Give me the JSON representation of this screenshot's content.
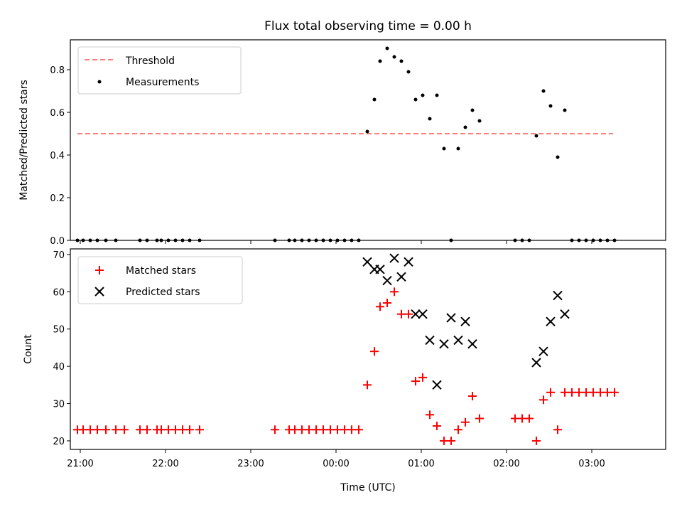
{
  "title": "Flux total observing time = 0.00 h",
  "colors": {
    "threshold": "#ff7f7f",
    "measurements": "#000000",
    "matched": "#ff0000",
    "predicted": "#000000"
  },
  "chart_data": [
    {
      "type": "scatter",
      "title": "Flux total observing time = 0.00 h",
      "ylabel": "Matched/Predicted stars",
      "xlabel": "",
      "xlim": [
        "20:53",
        "03:52"
      ],
      "ylim": [
        0,
        0.94
      ],
      "yticks": [
        "0.0",
        "0.2",
        "0.4",
        "0.6",
        "0.8"
      ],
      "ytick_values": [
        0,
        0.2,
        0.4,
        0.6,
        0.8
      ],
      "legend_loc": "upper left",
      "threshold": {
        "name": "Threshold",
        "y": 0.5,
        "x_start": "20:58",
        "x_end": "03:15"
      },
      "series": [
        {
          "name": "Measurements",
          "x": [
            "20:58",
            "21:02",
            "21:07",
            "21:12",
            "21:18",
            "21:25",
            "21:42",
            "21:47",
            "21:54",
            "21:57",
            "22:02",
            "22:07",
            "22:12",
            "22:17",
            "22:24",
            "23:17",
            "23:27",
            "23:31",
            "23:36",
            "23:41",
            "23:46",
            "23:51",
            "23:56",
            "00:01",
            "00:06",
            "00:11",
            "00:16",
            "00:22",
            "00:27",
            "00:31",
            "00:36",
            "00:41",
            "00:46",
            "00:51",
            "00:56",
            "01:01",
            "01:06",
            "01:11",
            "01:16",
            "01:21",
            "01:26",
            "01:31",
            "01:36",
            "01:41",
            "02:06",
            "02:11",
            "02:16",
            "02:21",
            "02:26",
            "02:31",
            "02:36",
            "02:41",
            "02:46",
            "02:51",
            "02:56",
            "03:01",
            "03:06",
            "03:11",
            "03:16"
          ],
          "y": [
            0,
            0,
            0,
            0,
            0,
            0,
            0,
            0,
            0,
            0,
            0,
            0,
            0,
            0,
            0,
            0,
            0,
            0,
            0,
            0,
            0,
            0,
            0,
            0,
            0,
            0,
            0,
            0.51,
            0.66,
            0.84,
            0.9,
            0.86,
            0.84,
            0.79,
            0.66,
            0.68,
            0.57,
            0.68,
            0.43,
            0,
            0.43,
            0.53,
            0.61,
            0.56,
            0,
            0,
            0,
            0.49,
            0.7,
            0.63,
            0.39,
            0.61,
            0,
            0,
            0,
            0,
            0,
            0,
            0
          ]
        }
      ]
    },
    {
      "type": "scatter",
      "title": "",
      "ylabel": "Count",
      "xlabel": "Time (UTC)",
      "xlim": [
        "20:53",
        "03:52"
      ],
      "ylim": [
        17.7,
        71.5
      ],
      "yticks": [
        "20",
        "30",
        "40",
        "50",
        "60",
        "70"
      ],
      "ytick_values": [
        20,
        30,
        40,
        50,
        60,
        70
      ],
      "xticks": [
        "21:00",
        "22:00",
        "23:00",
        "00:00",
        "01:00",
        "02:00",
        "03:00"
      ],
      "legend_loc": "upper left",
      "series": [
        {
          "name": "Matched stars",
          "marker": "+",
          "x": [
            "20:58",
            "21:02",
            "21:07",
            "21:12",
            "21:18",
            "21:25",
            "21:31",
            "21:42",
            "21:47",
            "21:54",
            "21:57",
            "22:02",
            "22:07",
            "22:12",
            "22:17",
            "22:24",
            "23:17",
            "23:27",
            "23:31",
            "23:36",
            "23:41",
            "23:46",
            "23:51",
            "23:56",
            "00:01",
            "00:06",
            "00:11",
            "00:16",
            "00:22",
            "00:27",
            "00:31",
            "00:36",
            "00:41",
            "00:46",
            "00:51",
            "00:56",
            "01:01",
            "01:06",
            "01:11",
            "01:16",
            "01:21",
            "01:26",
            "01:31",
            "01:36",
            "01:41",
            "02:06",
            "02:11",
            "02:16",
            "02:21",
            "02:26",
            "02:31",
            "02:36",
            "02:41",
            "02:46",
            "02:51",
            "02:56",
            "03:01",
            "03:06",
            "03:11",
            "03:16"
          ],
          "y": [
            23,
            23,
            23,
            23,
            23,
            23,
            23,
            23,
            23,
            23,
            23,
            23,
            23,
            23,
            23,
            23,
            23,
            23,
            23,
            23,
            23,
            23,
            23,
            23,
            23,
            23,
            23,
            23,
            35,
            44,
            56,
            57,
            60,
            54,
            54,
            36,
            37,
            27,
            24,
            20,
            20,
            23,
            25,
            32,
            26,
            26,
            26,
            26,
            20,
            31,
            33,
            23,
            33,
            33,
            33,
            33,
            33,
            33,
            33,
            33
          ]
        },
        {
          "name": "Predicted stars",
          "marker": "x",
          "x": [
            "00:22",
            "00:27",
            "00:31",
            "00:36",
            "00:41",
            "00:46",
            "00:51",
            "00:56",
            "01:01",
            "01:06",
            "01:11",
            "01:16",
            "01:21",
            "01:26",
            "01:31",
            "01:36",
            "02:21",
            "02:26",
            "02:31",
            "02:36",
            "02:41"
          ],
          "y": [
            68,
            66,
            66,
            63,
            69,
            64,
            68,
            54,
            54,
            47,
            35,
            46,
            53,
            47,
            52,
            46,
            41,
            44,
            52,
            59,
            54
          ]
        }
      ]
    }
  ]
}
